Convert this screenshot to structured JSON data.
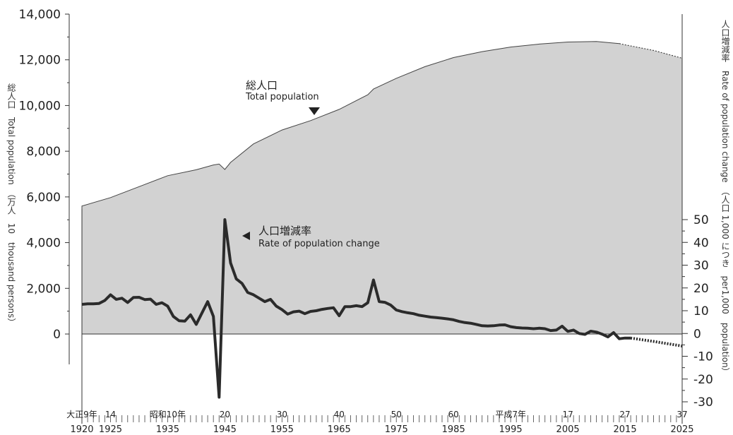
{
  "chart_data": {
    "type": "area",
    "y_left": {
      "label_jp": "総人口",
      "label_en": "Total population",
      "unit": "（万人　10　thousand persons）",
      "ylim": [
        0,
        14000
      ],
      "ticks": [
        0,
        2000,
        4000,
        6000,
        8000,
        10000,
        12000,
        14000
      ],
      "tick_labels": [
        "0",
        "2,000",
        "4,000",
        "6,000",
        "8,000",
        "10,000",
        "12,000",
        "14,000"
      ]
    },
    "y_right": {
      "label_jp": "人口増減率",
      "label_en": "Rate of population change",
      "unit": "（人口 1,000 につき　per1,000　population）",
      "ylim": [
        -30,
        50
      ],
      "ticks": [
        -30,
        -20,
        -10,
        0,
        10,
        20,
        30,
        40,
        50
      ],
      "tick_labels": [
        "-30",
        "-20",
        "-10",
        "0",
        "10",
        "20",
        "30",
        "40",
        "50"
      ]
    },
    "x_axis": {
      "range": [
        1920,
        2025
      ],
      "ticks": [
        {
          "year": 1920,
          "era": "大正9年",
          "ad": "1920"
        },
        {
          "year": 1925,
          "era": "14",
          "ad": "1925"
        },
        {
          "year": 1935,
          "era": "昭和10年",
          "ad": "1935"
        },
        {
          "year": 1945,
          "era": "20",
          "ad": "1945"
        },
        {
          "year": 1955,
          "era": "30",
          "ad": "1955"
        },
        {
          "year": 1965,
          "era": "40",
          "ad": "1965"
        },
        {
          "year": 1975,
          "era": "50",
          "ad": "1975"
        },
        {
          "year": 1985,
          "era": "60",
          "ad": "1985"
        },
        {
          "year": 1995,
          "era": "平成7年",
          "ad": "1995"
        },
        {
          "year": 2005,
          "era": "17",
          "ad": "2005"
        },
        {
          "year": 2015,
          "era": "27",
          "ad": "2015"
        },
        {
          "year": 2025,
          "era": "37",
          "ad": "2025"
        }
      ]
    },
    "annotations": {
      "total_jp": "総人口",
      "total_en": "Total population",
      "rate_jp": "人口増減率",
      "rate_en": "Rate of population change"
    },
    "series": [
      {
        "name": "総人口 Total population",
        "axis": "left",
        "style": "area",
        "points": [
          [
            1920,
            5600
          ],
          [
            1925,
            5970
          ],
          [
            1930,
            6450
          ],
          [
            1935,
            6930
          ],
          [
            1940,
            7190
          ],
          [
            1943,
            7400
          ],
          [
            1944,
            7440
          ],
          [
            1945,
            7200
          ],
          [
            1946,
            7510
          ],
          [
            1950,
            8320
          ],
          [
            1955,
            8930
          ],
          [
            1960,
            9340
          ],
          [
            1965,
            9830
          ],
          [
            1970,
            10470
          ],
          [
            1971,
            10720
          ],
          [
            1975,
            11190
          ],
          [
            1980,
            11700
          ],
          [
            1985,
            12100
          ],
          [
            1990,
            12360
          ],
          [
            1995,
            12560
          ],
          [
            2000,
            12690
          ],
          [
            2005,
            12780
          ],
          [
            2010,
            12800
          ],
          [
            2014,
            12710
          ]
        ],
        "projection": [
          [
            2014,
            12710
          ],
          [
            2015,
            12660
          ],
          [
            2020,
            12410
          ],
          [
            2025,
            12070
          ]
        ]
      },
      {
        "name": "人口増減率 Rate of population change",
        "axis": "right",
        "style": "line",
        "points": [
          [
            1920,
            12.8
          ],
          [
            1921,
            13
          ],
          [
            1922,
            13
          ],
          [
            1923,
            13.2
          ],
          [
            1924,
            14.5
          ],
          [
            1925,
            17
          ],
          [
            1926,
            15
          ],
          [
            1927,
            15.5
          ],
          [
            1928,
            13.6
          ],
          [
            1929,
            15.8
          ],
          [
            1930,
            15.9
          ],
          [
            1931,
            14.9
          ],
          [
            1932,
            15.1
          ],
          [
            1933,
            12.8
          ],
          [
            1934,
            13.5
          ],
          [
            1935,
            12
          ],
          [
            1936,
            7.5
          ],
          [
            1937,
            5.6
          ],
          [
            1938,
            5.4
          ],
          [
            1939,
            8.2
          ],
          [
            1940,
            4
          ],
          [
            1941,
            9
          ],
          [
            1942,
            14
          ],
          [
            1943,
            7.5
          ],
          [
            1944,
            -28
          ],
          [
            1945,
            50
          ],
          [
            1946,
            31
          ],
          [
            1947,
            24
          ],
          [
            1948,
            22
          ],
          [
            1949,
            18
          ],
          [
            1950,
            17
          ],
          [
            1951,
            15.5
          ],
          [
            1952,
            14
          ],
          [
            1953,
            15
          ],
          [
            1954,
            12
          ],
          [
            1955,
            10.5
          ],
          [
            1956,
            8.5
          ],
          [
            1957,
            9.5
          ],
          [
            1958,
            9.8
          ],
          [
            1959,
            8.7
          ],
          [
            1960,
            9.7
          ],
          [
            1961,
            10
          ],
          [
            1962,
            10.6
          ],
          [
            1963,
            11
          ],
          [
            1964,
            11.3
          ],
          [
            1965,
            7.8
          ],
          [
            1966,
            11.8
          ],
          [
            1967,
            11.8
          ],
          [
            1968,
            12.2
          ],
          [
            1969,
            11.8
          ],
          [
            1970,
            13.5
          ],
          [
            1971,
            23.5
          ],
          [
            1972,
            14
          ],
          [
            1973,
            13.7
          ],
          [
            1974,
            12.5
          ],
          [
            1975,
            10.3
          ],
          [
            1976,
            9.6
          ],
          [
            1977,
            9.1
          ],
          [
            1978,
            8.7
          ],
          [
            1979,
            8
          ],
          [
            1980,
            7.6
          ],
          [
            1981,
            7.2
          ],
          [
            1982,
            7
          ],
          [
            1983,
            6.7
          ],
          [
            1984,
            6.4
          ],
          [
            1985,
            6
          ],
          [
            1986,
            5.3
          ],
          [
            1987,
            4.8
          ],
          [
            1988,
            4.5
          ],
          [
            1989,
            4
          ],
          [
            1990,
            3.4
          ],
          [
            1991,
            3.3
          ],
          [
            1992,
            3.4
          ],
          [
            1993,
            3.7
          ],
          [
            1994,
            3.8
          ],
          [
            1995,
            3
          ],
          [
            1996,
            2.6
          ],
          [
            1997,
            2.4
          ],
          [
            1998,
            2.3
          ],
          [
            1999,
            2.1
          ],
          [
            2000,
            2.3
          ],
          [
            2001,
            2.1
          ],
          [
            2002,
            1.3
          ],
          [
            2003,
            1.5
          ],
          [
            2004,
            3.2
          ],
          [
            2005,
            0.9
          ],
          [
            2006,
            1.5
          ],
          [
            2007,
            0
          ],
          [
            2008,
            -0.4
          ],
          [
            2009,
            1
          ],
          [
            2010,
            0.6
          ],
          [
            2011,
            -0.3
          ],
          [
            2012,
            -1.5
          ],
          [
            2013,
            0.4
          ],
          [
            2014,
            -2.3
          ],
          [
            2015,
            -2
          ],
          [
            2016,
            -2
          ]
        ],
        "projection": [
          [
            2016,
            -2
          ],
          [
            2020,
            -3.5
          ],
          [
            2025,
            -5.5
          ]
        ]
      }
    ]
  }
}
